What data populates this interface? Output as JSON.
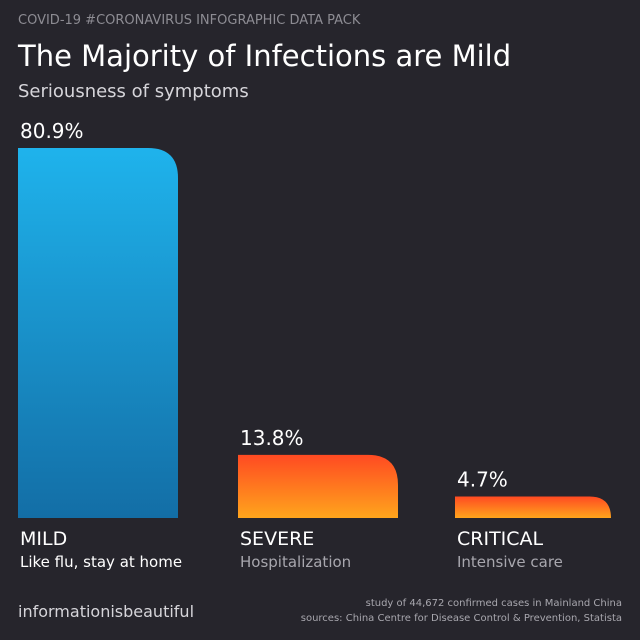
{
  "chart_data": {
    "type": "bar",
    "header": "COVID-19 #CORONAVIRUS INFOGRAPHIC DATA PACK",
    "title": "The Majority of Infections are Mild",
    "subtitle": "Seriousness of symptoms",
    "categories": [
      "MILD",
      "SEVERE",
      "CRITICAL"
    ],
    "descriptions": [
      "Like flu, stay at home",
      "Hospitalization",
      "Intensive care"
    ],
    "values": [
      80.9,
      13.8,
      4.7
    ],
    "value_labels": [
      "80.9%",
      "13.8%",
      "4.7%"
    ],
    "gradients": [
      [
        "#1fb3ec",
        "#136ea6"
      ],
      [
        "#ff4a22",
        "#ffa51c"
      ],
      [
        "#ff4a22",
        "#ffa51c"
      ]
    ],
    "brand": "informationisbeautiful",
    "notes": [
      "study of 44,672 confirmed cases in Mainland China",
      "sources: China Centre for Disease Control & Prevention, Statista"
    ]
  }
}
